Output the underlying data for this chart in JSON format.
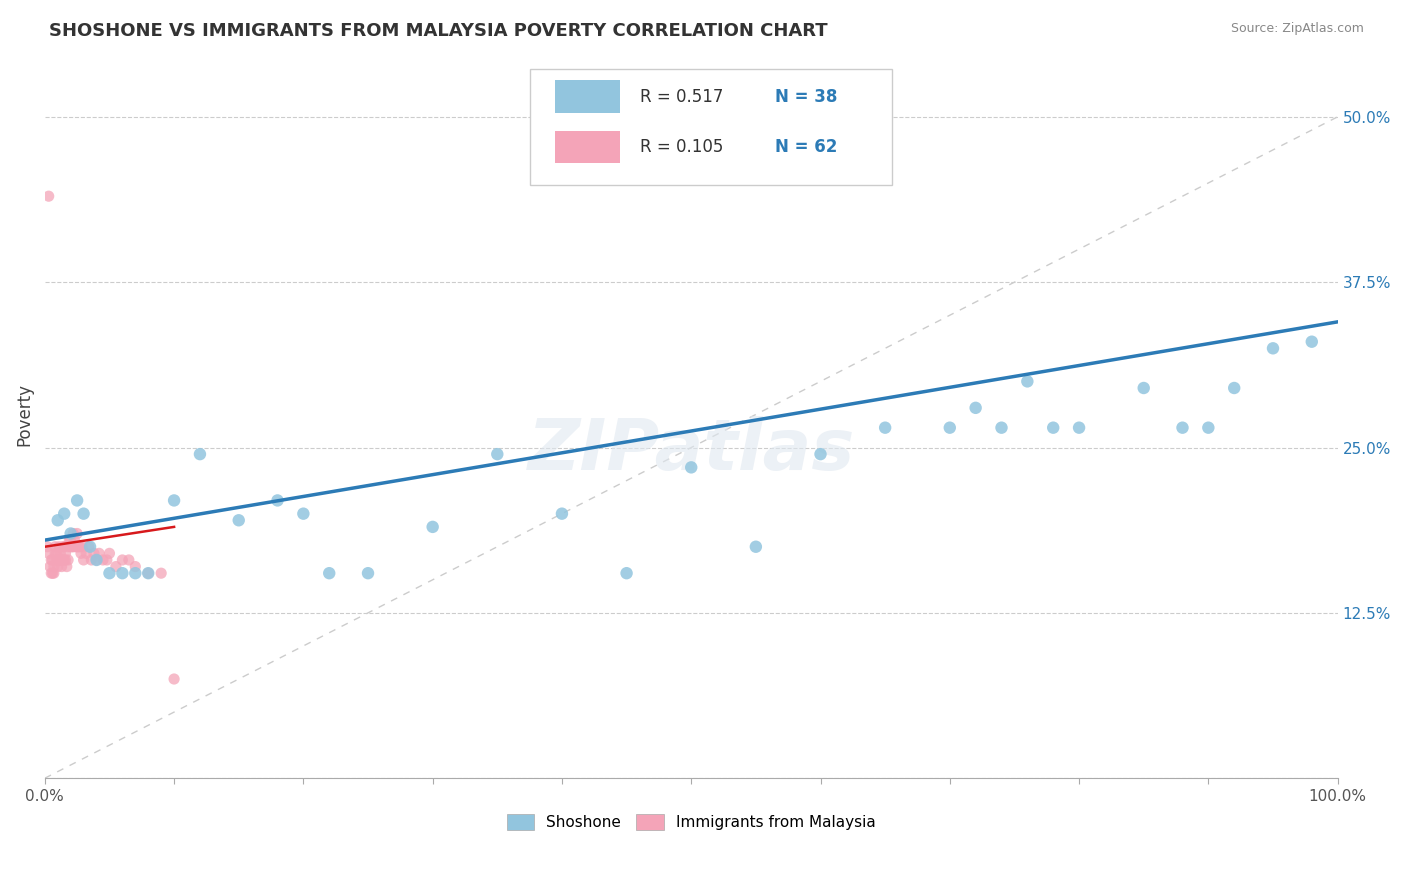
{
  "title": "SHOSHONE VS IMMIGRANTS FROM MALAYSIA POVERTY CORRELATION CHART",
  "source": "Source: ZipAtlas.com",
  "ylabel": "Poverty",
  "xlim": [
    0,
    1.0
  ],
  "ylim": [
    0.0,
    0.55
  ],
  "blue_R": 0.517,
  "blue_N": 38,
  "pink_R": 0.105,
  "pink_N": 62,
  "blue_color": "#92c5de",
  "pink_color": "#f4a4b8",
  "blue_line_color": "#2c7bb6",
  "pink_line_color": "#d7191c",
  "diag_color": "#cccccc",
  "grid_color": "#cccccc",
  "legend_label_blue": "Shoshone",
  "legend_label_pink": "Immigrants from Malaysia",
  "background_color": "#ffffff",
  "blue_x": [
    0.01,
    0.015,
    0.02,
    0.025,
    0.03,
    0.035,
    0.04,
    0.05,
    0.06,
    0.07,
    0.08,
    0.1,
    0.12,
    0.15,
    0.18,
    0.2,
    0.22,
    0.25,
    0.3,
    0.35,
    0.4,
    0.45,
    0.5,
    0.55,
    0.6,
    0.65,
    0.7,
    0.72,
    0.74,
    0.76,
    0.78,
    0.8,
    0.85,
    0.88,
    0.9,
    0.92,
    0.95,
    0.98
  ],
  "blue_y": [
    0.195,
    0.2,
    0.185,
    0.21,
    0.2,
    0.175,
    0.165,
    0.155,
    0.155,
    0.155,
    0.155,
    0.21,
    0.245,
    0.195,
    0.21,
    0.2,
    0.155,
    0.155,
    0.19,
    0.245,
    0.2,
    0.155,
    0.235,
    0.175,
    0.245,
    0.265,
    0.265,
    0.28,
    0.265,
    0.3,
    0.265,
    0.265,
    0.295,
    0.265,
    0.265,
    0.295,
    0.325,
    0.33
  ],
  "pink_x": [
    0.002,
    0.003,
    0.004,
    0.005,
    0.005,
    0.006,
    0.006,
    0.007,
    0.007,
    0.008,
    0.008,
    0.009,
    0.009,
    0.01,
    0.01,
    0.011,
    0.011,
    0.012,
    0.012,
    0.013,
    0.013,
    0.014,
    0.014,
    0.015,
    0.015,
    0.016,
    0.016,
    0.017,
    0.018,
    0.018,
    0.019,
    0.02,
    0.02,
    0.021,
    0.022,
    0.022,
    0.023,
    0.024,
    0.025,
    0.025,
    0.026,
    0.027,
    0.028,
    0.029,
    0.03,
    0.032,
    0.034,
    0.036,
    0.038,
    0.04,
    0.042,
    0.045,
    0.048,
    0.05,
    0.055,
    0.06,
    0.065,
    0.07,
    0.08,
    0.09,
    0.003,
    0.1
  ],
  "pink_y": [
    0.175,
    0.17,
    0.16,
    0.155,
    0.165,
    0.155,
    0.165,
    0.16,
    0.155,
    0.17,
    0.175,
    0.165,
    0.17,
    0.16,
    0.165,
    0.165,
    0.175,
    0.165,
    0.17,
    0.165,
    0.16,
    0.165,
    0.175,
    0.165,
    0.175,
    0.165,
    0.17,
    0.16,
    0.165,
    0.175,
    0.18,
    0.175,
    0.18,
    0.175,
    0.175,
    0.185,
    0.18,
    0.175,
    0.175,
    0.185,
    0.175,
    0.175,
    0.17,
    0.175,
    0.165,
    0.17,
    0.175,
    0.165,
    0.17,
    0.165,
    0.17,
    0.165,
    0.165,
    0.17,
    0.16,
    0.165,
    0.165,
    0.16,
    0.155,
    0.155,
    0.44,
    0.075
  ],
  "blue_line_x0": 0.0,
  "blue_line_y0": 0.18,
  "blue_line_x1": 1.0,
  "blue_line_y1": 0.345,
  "pink_line_x0": 0.0,
  "pink_line_y0": 0.175,
  "pink_line_x1": 0.1,
  "pink_line_y1": 0.19
}
